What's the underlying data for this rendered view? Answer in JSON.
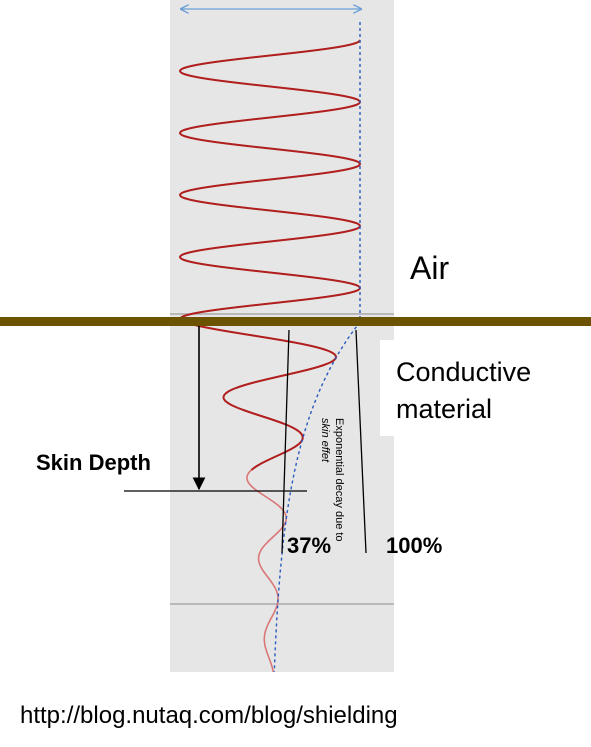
{
  "labels": {
    "air": "Air",
    "conductive_line1": "Conductive",
    "conductive_line2": "material",
    "skin_depth": "Skin Depth",
    "pct_37": "37%",
    "pct_100": "100%",
    "decay_line1": "Exponential decay due to",
    "decay_line2": "skin effet",
    "source_url": "http://blog.nutaq.com/blog/shielding"
  },
  "colors": {
    "panel": "#e6e6e6",
    "surface": "#6b5300",
    "wave": "#b01e1e",
    "wave_faded": "#d97777",
    "envelope": "#2a5bbf",
    "width_arrow": "#6a9fd8",
    "grid_line": "#aaaaaa"
  }
}
